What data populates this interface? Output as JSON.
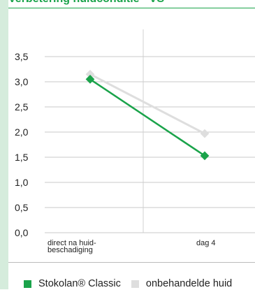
{
  "header": {
    "title": "Verbetering huidconditie - VS"
  },
  "chart_data": {
    "type": "line",
    "title": "Verbetering huidconditie - VS",
    "categories": [
      "direct na huid-\nbeschadiging",
      "dag 4"
    ],
    "series": [
      {
        "name": "Stokolan® Classic",
        "values": [
          3.05,
          1.53
        ],
        "color": "#1aa34a"
      },
      {
        "name": "onbehandelde huid",
        "values": [
          3.15,
          1.97
        ],
        "color": "#dedede"
      }
    ],
    "y_ticks": [
      "0,0",
      "0,5",
      "1,0",
      "1,5",
      "2,0",
      "2,5",
      "3,0",
      "3,5"
    ],
    "ylim": [
      0,
      3.5
    ],
    "xlabel": "",
    "ylabel": "",
    "grid": false,
    "legend_position": "bottom"
  },
  "legend": [
    {
      "label": "Stokolan® Classic",
      "color": "#1aa34a"
    },
    {
      "label": "onbehandelde huid",
      "color": "#dedede"
    }
  ]
}
